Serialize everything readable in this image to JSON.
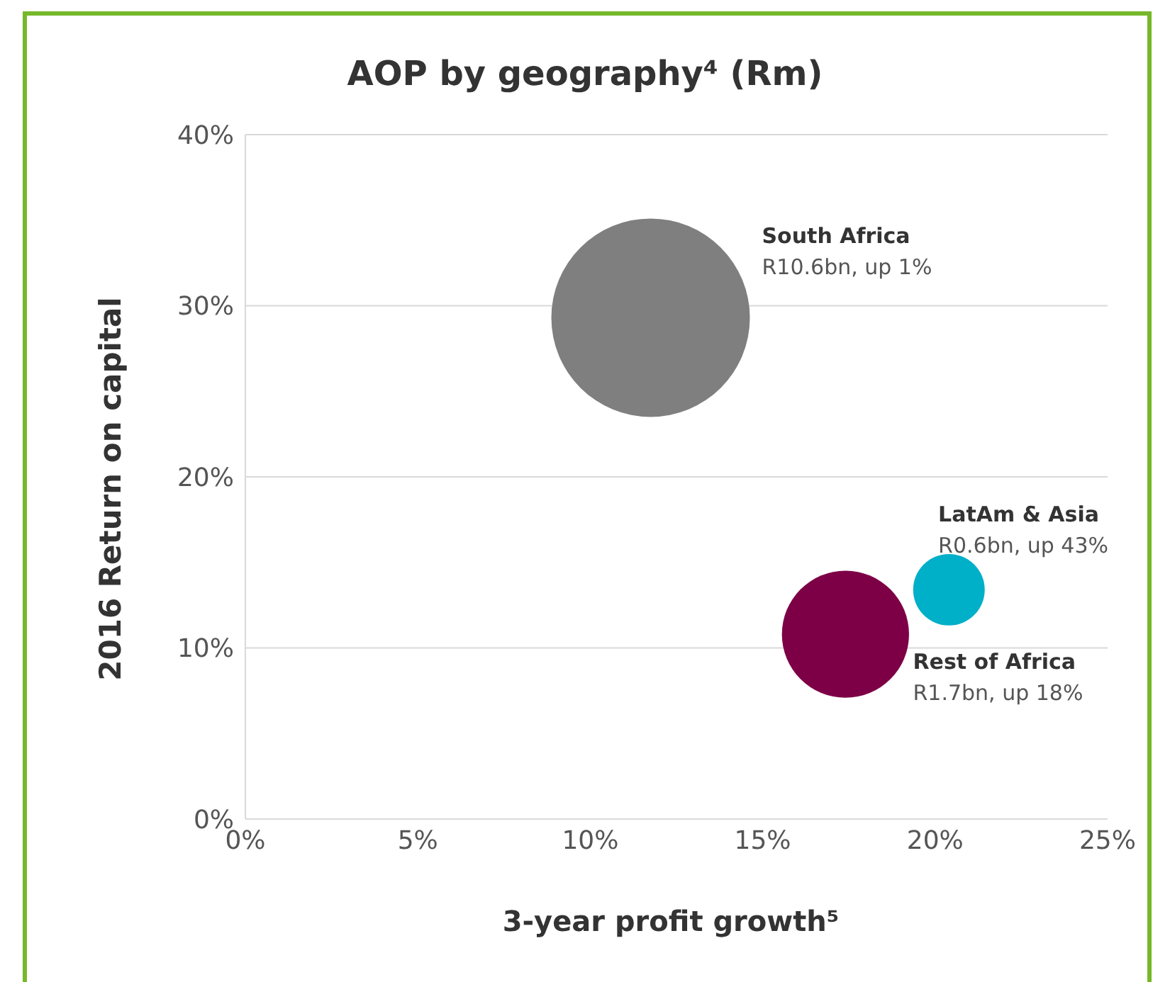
{
  "chart_data": {
    "type": "bubble",
    "title": "AOP by geography⁴ (Rm)",
    "xlabel": "3-year profit growth⁵",
    "ylabel": "2016 Return on capital",
    "xlim": [
      0,
      25
    ],
    "xticks": [
      {
        "value": 0,
        "label": "0%"
      },
      {
        "value": 5,
        "label": "5%"
      },
      {
        "value": 10,
        "label": "10%"
      },
      {
        "value": 15,
        "label": "15%"
      },
      {
        "value": 20,
        "label": "20%"
      },
      {
        "value": 25,
        "label": "25%"
      }
    ],
    "ylim": [
      0,
      40
    ],
    "yticks": [
      {
        "value": 0,
        "label": "0%"
      },
      {
        "value": 10,
        "label": "10%"
      },
      {
        "value": 20,
        "label": "20%"
      },
      {
        "value": 30,
        "label": "30%"
      },
      {
        "value": 40,
        "label": "40%"
      }
    ],
    "grid": "y",
    "legend": false,
    "series": [
      {
        "name": "South Africa",
        "color": "#7f7f7f",
        "x": [
          11.75
        ],
        "values": [
          29.3
        ],
        "sizes": [
          1
        ],
        "value_labels": [
          "R10.6bn, up 1%"
        ]
      },
      {
        "name": "Rest of Africa",
        "color": "#7d0046",
        "x": [
          17.4
        ],
        "values": [
          10.8
        ],
        "sizes": [
          0.41
        ],
        "value_labels": [
          "R1.7bn, up 18%"
        ]
      },
      {
        "name": "LatAm & Asia",
        "color": "#00afc8",
        "x": [
          20.4
        ],
        "values": [
          13.4
        ],
        "sizes": [
          0.13
        ],
        "value_labels": [
          "R0.6bn, up 43%"
        ]
      }
    ]
  }
}
